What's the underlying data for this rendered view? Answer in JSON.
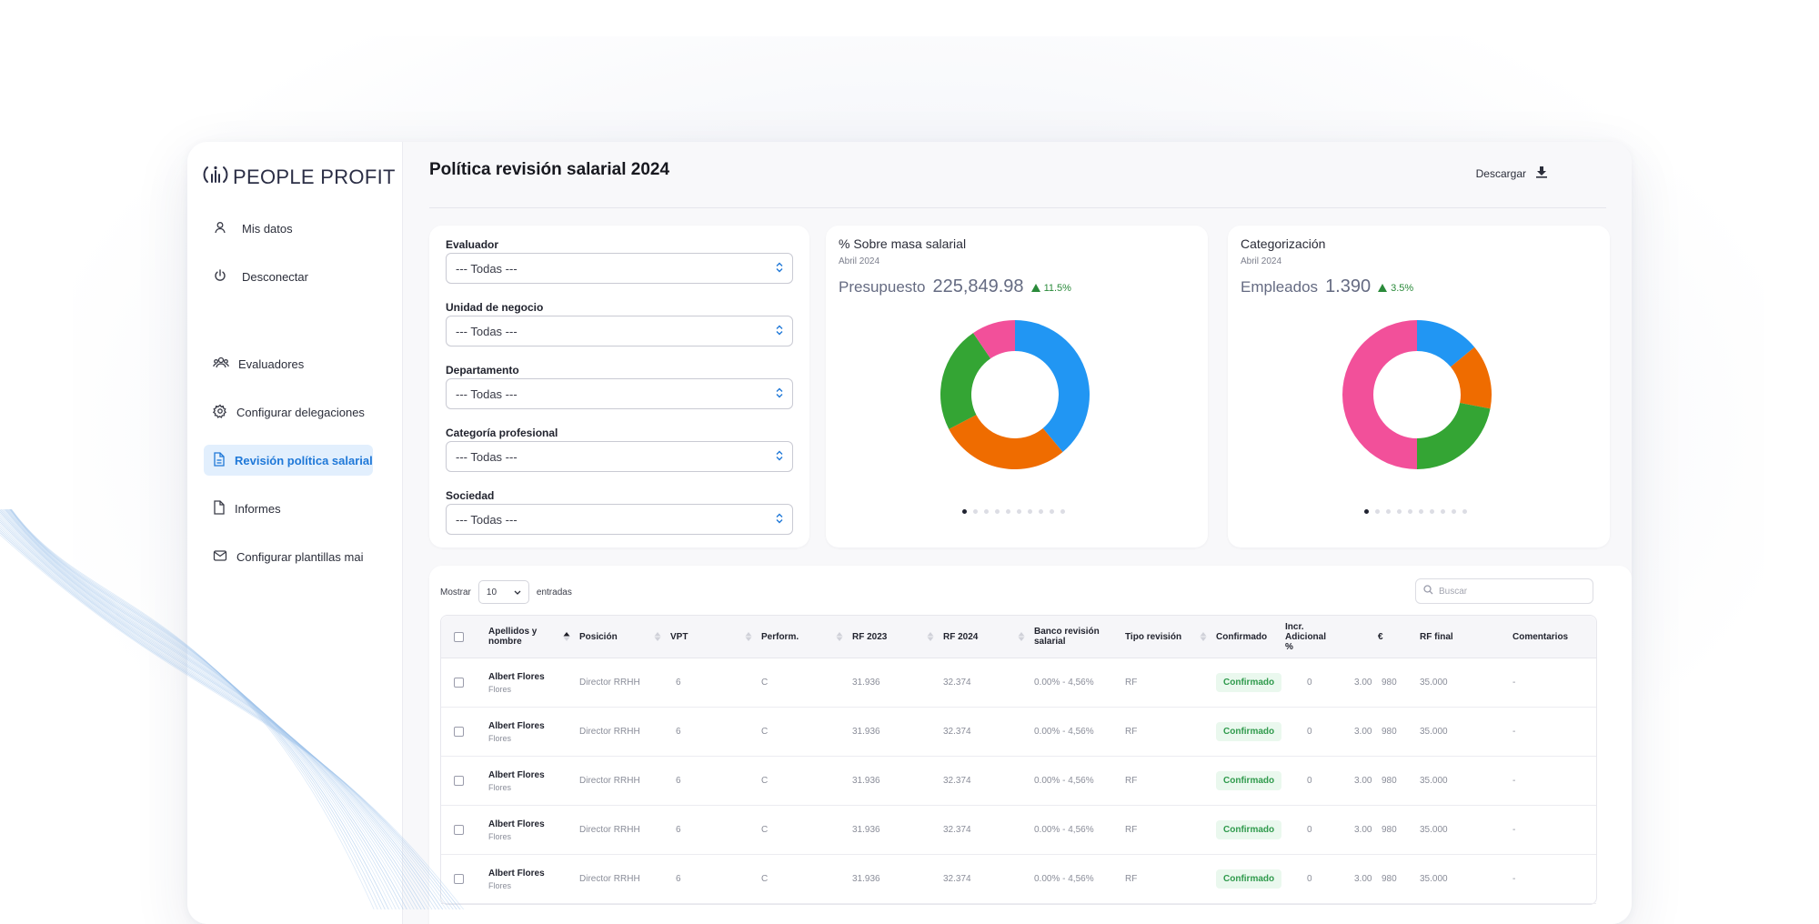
{
  "brand": {
    "name": "PEOPLE PROFIT"
  },
  "sidebar": {
    "top_items": [
      {
        "label": "Mis datos",
        "icon": "user-icon"
      },
      {
        "label": "Desconectar",
        "icon": "power-icon"
      }
    ],
    "items": [
      {
        "label": "Evaluadores",
        "icon": "users-icon"
      },
      {
        "label": "Configurar delegaciones",
        "icon": "gear-icon"
      },
      {
        "label": "Revisión política salarial",
        "icon": "document-icon",
        "active": true
      },
      {
        "label": "Informes",
        "icon": "file-icon"
      },
      {
        "label": "Configurar plantillas mai",
        "icon": "mail-icon"
      }
    ]
  },
  "header": {
    "title": "Política revisión salarial 2024",
    "download_label": "Descargar"
  },
  "filters": [
    {
      "label": "Evaluador",
      "value": "--- Todas ---"
    },
    {
      "label": "Unidad de negocio",
      "value": "--- Todas ---"
    },
    {
      "label": "Departamento",
      "value": "--- Todas ---"
    },
    {
      "label": "Categoría profesional",
      "value": "--- Todas ---"
    },
    {
      "label": "Sociedad",
      "value": "--- Todas ---"
    }
  ],
  "cards": [
    {
      "title": "% Sobre masa salarial",
      "subtitle": "Abril 2024",
      "kpi_label": "Presupuesto",
      "kpi_value": "225,849.98",
      "change": "11.5%"
    },
    {
      "title": "Categorización",
      "subtitle": "Abril 2024",
      "kpi_label": "Empleados",
      "kpi_value": "1.390",
      "change": "3.5%"
    }
  ],
  "chart_data": [
    {
      "type": "pie",
      "values": [
        37,
        27,
        22,
        9
      ],
      "colors": [
        "#2196f3",
        "#ef6c00",
        "#34a534",
        "#f2509a"
      ],
      "carousel_pages": 10,
      "active_page": 1
    },
    {
      "type": "pie",
      "values": [
        14,
        14,
        22,
        50
      ],
      "colors": [
        "#2196f3",
        "#ef6c00",
        "#34a534",
        "#f2509a"
      ],
      "carousel_pages": 10,
      "active_page": 1
    }
  ],
  "table": {
    "show_label": "Mostrar",
    "page_length": "10",
    "entries_label": "entradas",
    "search_placeholder": "Buscar",
    "columns": [
      "Apellidos y nombre",
      "Posición",
      "VPT",
      "Perform.",
      "RF 2023",
      "RF 2024",
      "Banco revisión salarial",
      "Tipo revisión",
      "Confirmado",
      "Incr. Adicional %",
      "€",
      "RF final",
      "Comentarios"
    ],
    "rows": [
      {
        "name": "Albert Flores",
        "sub": "Flores",
        "position": "Director RRHH",
        "vpt": "6",
        "perform": "C",
        "rf2023": "31.936",
        "rf2024": "32.374",
        "banco": "0.00% - 4,56%",
        "tipo": "RF",
        "confirmado": "Confirmado",
        "incr": "0",
        "pct": "3.00",
        "eur": "980",
        "rf_final": "35.000",
        "comentarios": "-"
      },
      {
        "name": "Albert Flores",
        "sub": "Flores",
        "position": "Director RRHH",
        "vpt": "6",
        "perform": "C",
        "rf2023": "31.936",
        "rf2024": "32.374",
        "banco": "0.00% - 4,56%",
        "tipo": "RF",
        "confirmado": "Confirmado",
        "incr": "0",
        "pct": "3.00",
        "eur": "980",
        "rf_final": "35.000",
        "comentarios": "-"
      },
      {
        "name": "Albert Flores",
        "sub": "Flores",
        "position": "Director RRHH",
        "vpt": "6",
        "perform": "C",
        "rf2023": "31.936",
        "rf2024": "32.374",
        "banco": "0.00% - 4,56%",
        "tipo": "RF",
        "confirmado": "Confirmado",
        "incr": "0",
        "pct": "3.00",
        "eur": "980",
        "rf_final": "35.000",
        "comentarios": "-"
      },
      {
        "name": "Albert Flores",
        "sub": "Flores",
        "position": "Director RRHH",
        "vpt": "6",
        "perform": "C",
        "rf2023": "31.936",
        "rf2024": "32.374",
        "banco": "0.00% - 4,56%",
        "tipo": "RF",
        "confirmado": "Confirmado",
        "incr": "0",
        "pct": "3.00",
        "eur": "980",
        "rf_final": "35.000",
        "comentarios": "-"
      },
      {
        "name": "Albert Flores",
        "sub": "Flores",
        "position": "Director RRHH",
        "vpt": "6",
        "perform": "C",
        "rf2023": "31.936",
        "rf2024": "32.374",
        "banco": "0.00% - 4,56%",
        "tipo": "RF",
        "confirmado": "Confirmado",
        "incr": "0",
        "pct": "3.00",
        "eur": "980",
        "rf_final": "35.000",
        "comentarios": "-"
      }
    ]
  }
}
